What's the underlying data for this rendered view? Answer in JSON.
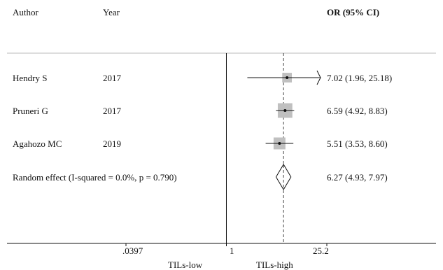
{
  "header": {
    "author": "Author",
    "year": "Year",
    "or_ci": "OR (95% CI)"
  },
  "chart_data": {
    "type": "forest",
    "xscale": "log",
    "xlim": [
      0.0397,
      25.2
    ],
    "null_value": 1,
    "ticks": [
      {
        "value": 0.0397,
        "label": ".0397"
      },
      {
        "value": 1,
        "label": "1"
      },
      {
        "value": 25.2,
        "label": "25.2"
      }
    ],
    "xlabel_left": "TILs-low",
    "xlabel_right": "TILs-high",
    "studies": [
      {
        "author": "Hendry S",
        "year": "2017",
        "or": 7.02,
        "lo": 1.96,
        "hi": 25.18,
        "ci_text": "7.02 (1.96, 25.18)",
        "weight": 0.15,
        "clipped_hi": true
      },
      {
        "author": "Pruneri G",
        "year": "2017",
        "or": 6.59,
        "lo": 4.92,
        "hi": 8.83,
        "ci_text": "6.59 (4.92, 8.83)",
        "weight": 0.55,
        "clipped_hi": false
      },
      {
        "author": "Agahozo MC",
        "year": "2019",
        "or": 5.51,
        "lo": 3.53,
        "hi": 8.6,
        "ci_text": "5.51 (3.53, 8.60)",
        "weight": 0.3,
        "clipped_hi": false
      }
    ],
    "pooled": {
      "label": "Random effect (I-squared = 0.0%, p = 0.790)",
      "or": 6.27,
      "lo": 4.93,
      "hi": 7.97,
      "ci_text": "6.27 (4.93, 7.97)"
    },
    "colors": {
      "line": "#111111",
      "box": "#c0c0c0",
      "ref": "#444444"
    }
  }
}
